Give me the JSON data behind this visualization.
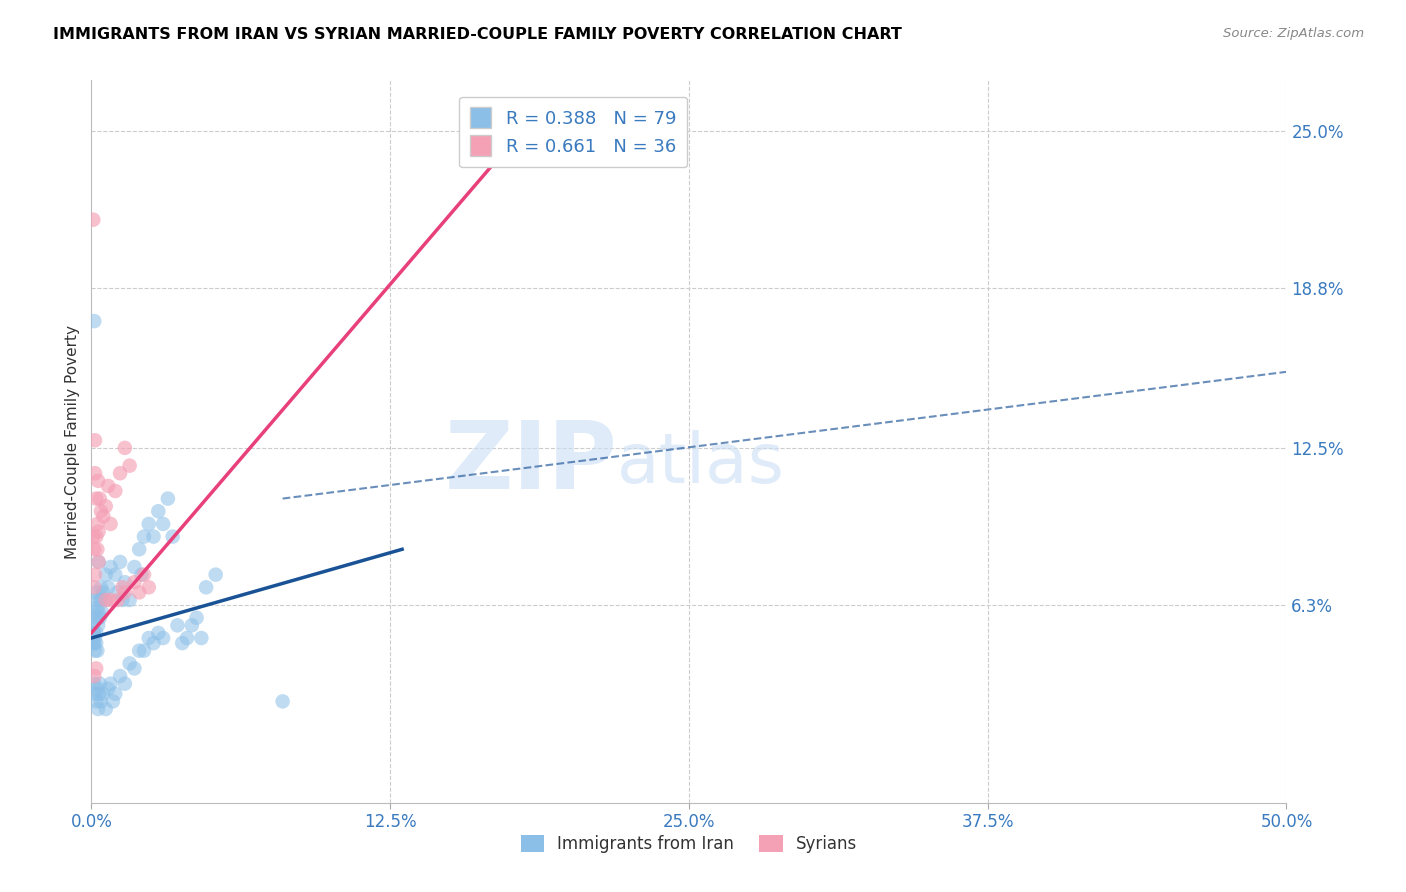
{
  "title": "IMMIGRANTS FROM IRAN VS SYRIAN MARRIED-COUPLE FAMILY POVERTY CORRELATION CHART",
  "source": "Source: ZipAtlas.com",
  "xlabel_ticks": [
    "0.0%",
    "12.5%",
    "25.0%",
    "37.5%",
    "50.0%"
  ],
  "xlabel_vals": [
    0,
    12.5,
    25.0,
    37.5,
    50.0
  ],
  "ylabel": "Married-Couple Family Poverty",
  "ylabel_ticks_label": [
    "6.3%",
    "12.5%",
    "18.8%",
    "25.0%"
  ],
  "ylabel_ticks_val": [
    6.3,
    12.5,
    18.8,
    25.0
  ],
  "xlim": [
    0.0,
    50.0
  ],
  "ylim": [
    -1.5,
    27.0
  ],
  "iran_R": 0.388,
  "iran_N": 79,
  "syrian_R": 0.661,
  "syrian_N": 36,
  "iran_color": "#8bbfe8",
  "syrian_color": "#f4a0b5",
  "iran_line_color": "#1a5296",
  "syrian_line_color": "#e8407a",
  "watermark_zip": "ZIP",
  "watermark_atlas": "atlas",
  "legend_labels": [
    "Immigrants from Iran",
    "Syrians"
  ],
  "iran_scatter": [
    [
      0.1,
      5.2
    ],
    [
      0.2,
      6.8
    ],
    [
      0.15,
      6.5
    ],
    [
      0.3,
      8.0
    ],
    [
      0.1,
      4.8
    ],
    [
      0.05,
      5.0
    ],
    [
      0.25,
      6.2
    ],
    [
      0.4,
      7.0
    ],
    [
      0.1,
      6.0
    ],
    [
      0.2,
      5.8
    ],
    [
      0.15,
      4.5
    ],
    [
      0.2,
      5.2
    ],
    [
      0.35,
      6.5
    ],
    [
      0.6,
      7.5
    ],
    [
      0.08,
      5.5
    ],
    [
      0.3,
      6.0
    ],
    [
      0.15,
      5.0
    ],
    [
      0.2,
      4.8
    ],
    [
      0.5,
      6.8
    ],
    [
      0.1,
      5.2
    ],
    [
      0.25,
      4.5
    ],
    [
      0.35,
      5.8
    ],
    [
      0.45,
      6.0
    ],
    [
      0.28,
      5.5
    ],
    [
      0.12,
      4.8
    ],
    [
      0.7,
      7.0
    ],
    [
      1.0,
      7.5
    ],
    [
      0.8,
      7.8
    ],
    [
      0.6,
      6.5
    ],
    [
      1.2,
      8.0
    ],
    [
      1.1,
      6.8
    ],
    [
      1.4,
      7.2
    ],
    [
      1.3,
      6.5
    ],
    [
      1.8,
      7.8
    ],
    [
      1.6,
      6.5
    ],
    [
      2.0,
      8.5
    ],
    [
      2.2,
      9.0
    ],
    [
      2.1,
      7.5
    ],
    [
      2.4,
      9.5
    ],
    [
      2.6,
      9.0
    ],
    [
      2.8,
      10.0
    ],
    [
      3.0,
      9.5
    ],
    [
      3.2,
      10.5
    ],
    [
      3.4,
      9.0
    ],
    [
      0.12,
      3.2
    ],
    [
      0.15,
      2.8
    ],
    [
      0.2,
      2.5
    ],
    [
      0.25,
      3.0
    ],
    [
      0.28,
      2.2
    ],
    [
      0.32,
      2.8
    ],
    [
      0.4,
      2.5
    ],
    [
      0.35,
      3.2
    ],
    [
      0.48,
      2.8
    ],
    [
      0.6,
      2.2
    ],
    [
      0.7,
      3.0
    ],
    [
      0.8,
      3.2
    ],
    [
      1.0,
      2.8
    ],
    [
      0.9,
      2.5
    ],
    [
      1.2,
      3.5
    ],
    [
      1.4,
      3.2
    ],
    [
      1.6,
      4.0
    ],
    [
      1.8,
      3.8
    ],
    [
      2.0,
      4.5
    ],
    [
      2.2,
      4.5
    ],
    [
      2.4,
      5.0
    ],
    [
      2.6,
      4.8
    ],
    [
      2.8,
      5.2
    ],
    [
      3.0,
      5.0
    ],
    [
      3.6,
      5.5
    ],
    [
      3.8,
      4.8
    ],
    [
      4.0,
      5.0
    ],
    [
      4.2,
      5.5
    ],
    [
      4.4,
      5.8
    ],
    [
      4.6,
      5.0
    ],
    [
      4.8,
      7.0
    ],
    [
      5.2,
      7.5
    ],
    [
      8.0,
      2.5
    ],
    [
      0.12,
      17.5
    ],
    [
      0.4,
      6.5
    ]
  ],
  "syrian_scatter": [
    [
      0.08,
      9.0
    ],
    [
      0.12,
      8.5
    ],
    [
      0.2,
      10.5
    ],
    [
      0.15,
      7.5
    ],
    [
      0.25,
      9.5
    ],
    [
      0.3,
      8.0
    ],
    [
      0.4,
      10.0
    ],
    [
      0.28,
      11.2
    ],
    [
      0.5,
      9.8
    ],
    [
      0.12,
      7.0
    ],
    [
      0.2,
      9.0
    ],
    [
      0.25,
      8.5
    ],
    [
      0.35,
      10.5
    ],
    [
      0.6,
      10.2
    ],
    [
      0.15,
      11.5
    ],
    [
      0.3,
      9.2
    ],
    [
      0.7,
      11.0
    ],
    [
      0.8,
      9.5
    ],
    [
      1.0,
      10.8
    ],
    [
      1.2,
      11.5
    ],
    [
      1.4,
      12.5
    ],
    [
      1.6,
      11.8
    ],
    [
      1.1,
      6.5
    ],
    [
      1.3,
      7.0
    ],
    [
      1.4,
      6.8
    ],
    [
      1.8,
      7.2
    ],
    [
      2.0,
      6.8
    ],
    [
      2.2,
      7.5
    ],
    [
      2.4,
      7.0
    ],
    [
      0.8,
      6.5
    ],
    [
      0.08,
      21.5
    ],
    [
      0.12,
      3.5
    ],
    [
      0.2,
      3.8
    ],
    [
      18.0,
      25.0
    ],
    [
      0.15,
      12.8
    ],
    [
      0.6,
      6.5
    ]
  ],
  "iran_reg_line": [
    [
      0.0,
      5.0
    ],
    [
      13.0,
      8.5
    ]
  ],
  "syrian_reg_line": [
    [
      0.0,
      5.2
    ],
    [
      18.0,
      25.0
    ]
  ],
  "iran_dash_line": [
    [
      8.0,
      10.5
    ],
    [
      50.0,
      15.5
    ]
  ]
}
